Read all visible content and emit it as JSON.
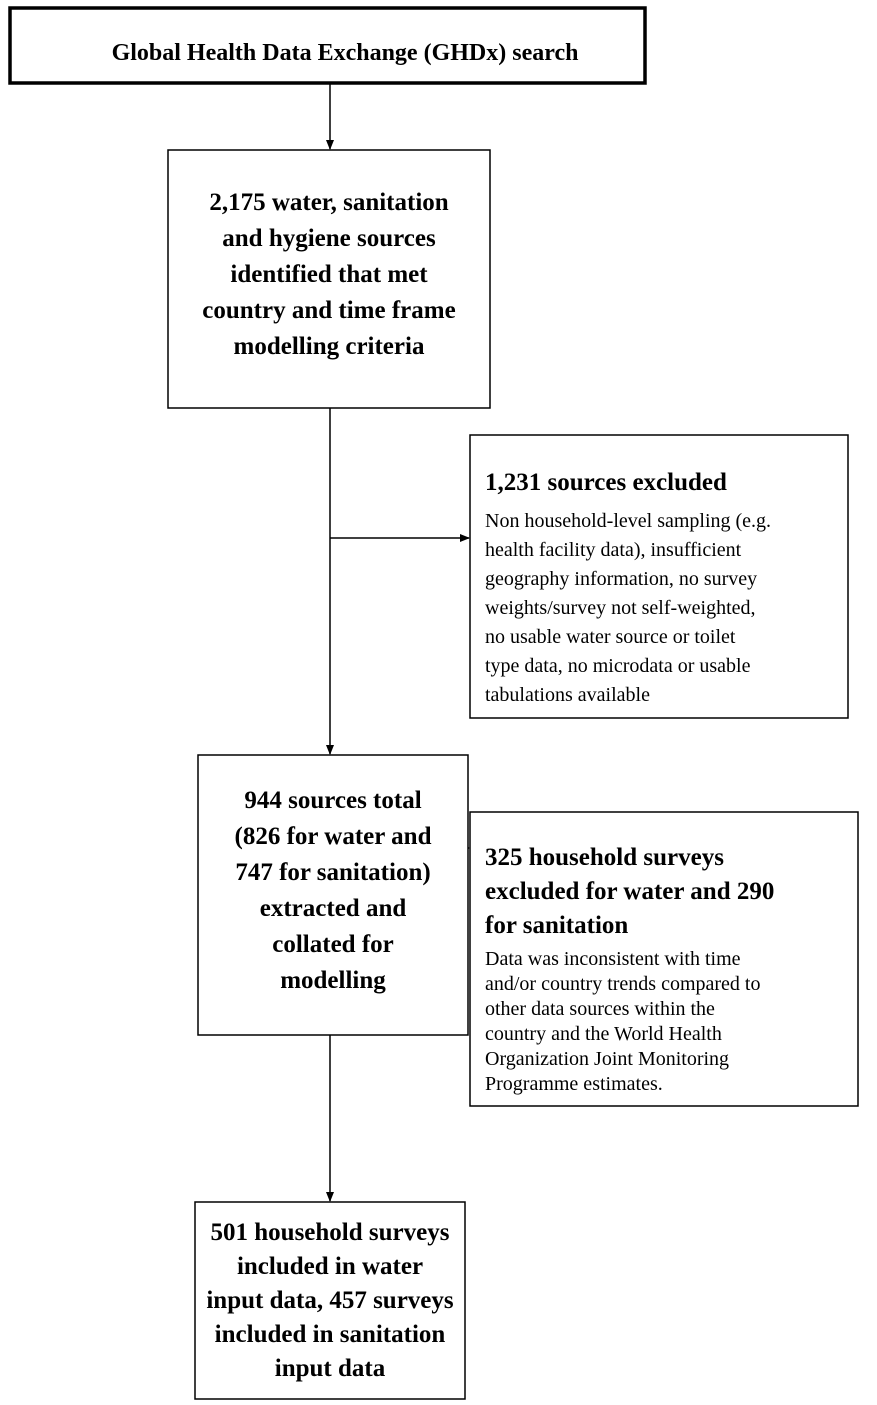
{
  "nodes": [
    {
      "lines": [
        "Global Health Data Exchange (GHDx) search"
      ]
    },
    {
      "lines": [
        "2,175 water, sanitation",
        "and hygiene sources",
        "identified that met",
        "country and time frame",
        "modelling criteria"
      ]
    },
    {
      "title": [
        "1,231 sources excluded"
      ],
      "lines": [
        "Non household-level sampling (e.g.",
        "health facility data), insufficient",
        "geography information, no survey",
        "weights/survey not self-weighted,",
        "no usable water source or toilet",
        "type data, no microdata or usable",
        "tabulations available"
      ]
    },
    {
      "lines": [
        "944 sources total",
        "(826 for water and",
        "747 for sanitation)",
        "extracted and",
        "collated for",
        "modelling"
      ]
    },
    {
      "title": [
        "325 household surveys",
        "excluded for water and 290",
        "for sanitation"
      ],
      "lines": [
        "Data was inconsistent with time",
        "and/or country trends compared to",
        "other data sources within the",
        "country and the World Health",
        "Organization Joint Monitoring",
        "Programme estimates."
      ]
    },
    {
      "lines": [
        "501 household surveys",
        "included in water",
        "input data, 457 surveys",
        "included in sanitation",
        "input data"
      ]
    }
  ]
}
